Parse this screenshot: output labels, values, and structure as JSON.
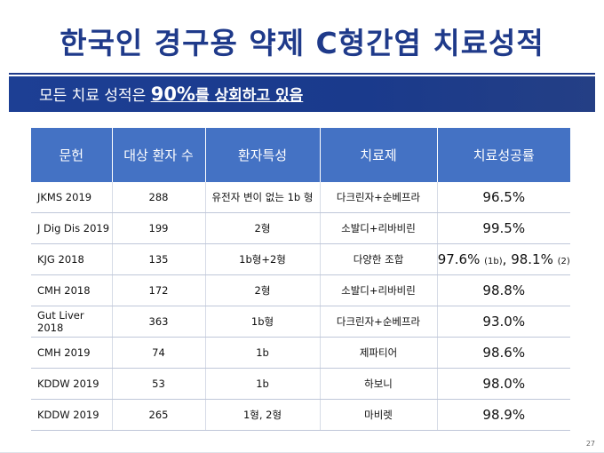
{
  "title": "한국인 경구용 약제 C형간염 치료성적",
  "banner": {
    "prefix": "모든 치료 성적은 ",
    "highlight_num": "90%",
    "highlight_rest": "를 상회하고 있음"
  },
  "table": {
    "headers": [
      "문헌",
      "대상 환자 수",
      "환자특성",
      "치료제",
      "치료성공률"
    ],
    "rows": [
      {
        "ref": "JKMS 2019",
        "n": "288",
        "trait": "유전자 변이 없는 1b 형",
        "drug": "다크린자+순베프라",
        "rate": "96.5%"
      },
      {
        "ref": "J Dig Dis 2019",
        "n": "199",
        "trait": "2형",
        "drug": "소발디+리바비린",
        "rate": "99.5%"
      },
      {
        "ref": "KJG 2018",
        "n": "135",
        "trait": "1b형+2형",
        "drug": "다양한 조합",
        "rate": "97.6%",
        "rate_note": "(1b)",
        "rate_sep": ", ",
        "rate2": "98.1%",
        "rate2_note": "(2)"
      },
      {
        "ref": "CMH 2018",
        "n": "172",
        "trait": "2형",
        "drug": "소발디+리바비린",
        "rate": "98.8%"
      },
      {
        "ref": "Gut Liver 2018",
        "n": "363",
        "trait": "1b형",
        "drug": "다크린자+순베프라",
        "rate": "93.0%"
      },
      {
        "ref": "CMH 2019",
        "n": "74",
        "trait": "1b",
        "drug": "제파티어",
        "rate": "98.6%"
      },
      {
        "ref": "KDDW 2019",
        "n": "53",
        "trait": "1b",
        "drug": "하보니",
        "rate": "98.0%"
      },
      {
        "ref": "KDDW 2019",
        "n": "265",
        "trait": "1형, 2형",
        "drug": "마비렛",
        "rate": "98.9%"
      }
    ]
  },
  "page_number": "27",
  "colors": {
    "title": "#1f3a8a",
    "banner": "#1a3a8c",
    "header": "#4472c4"
  }
}
